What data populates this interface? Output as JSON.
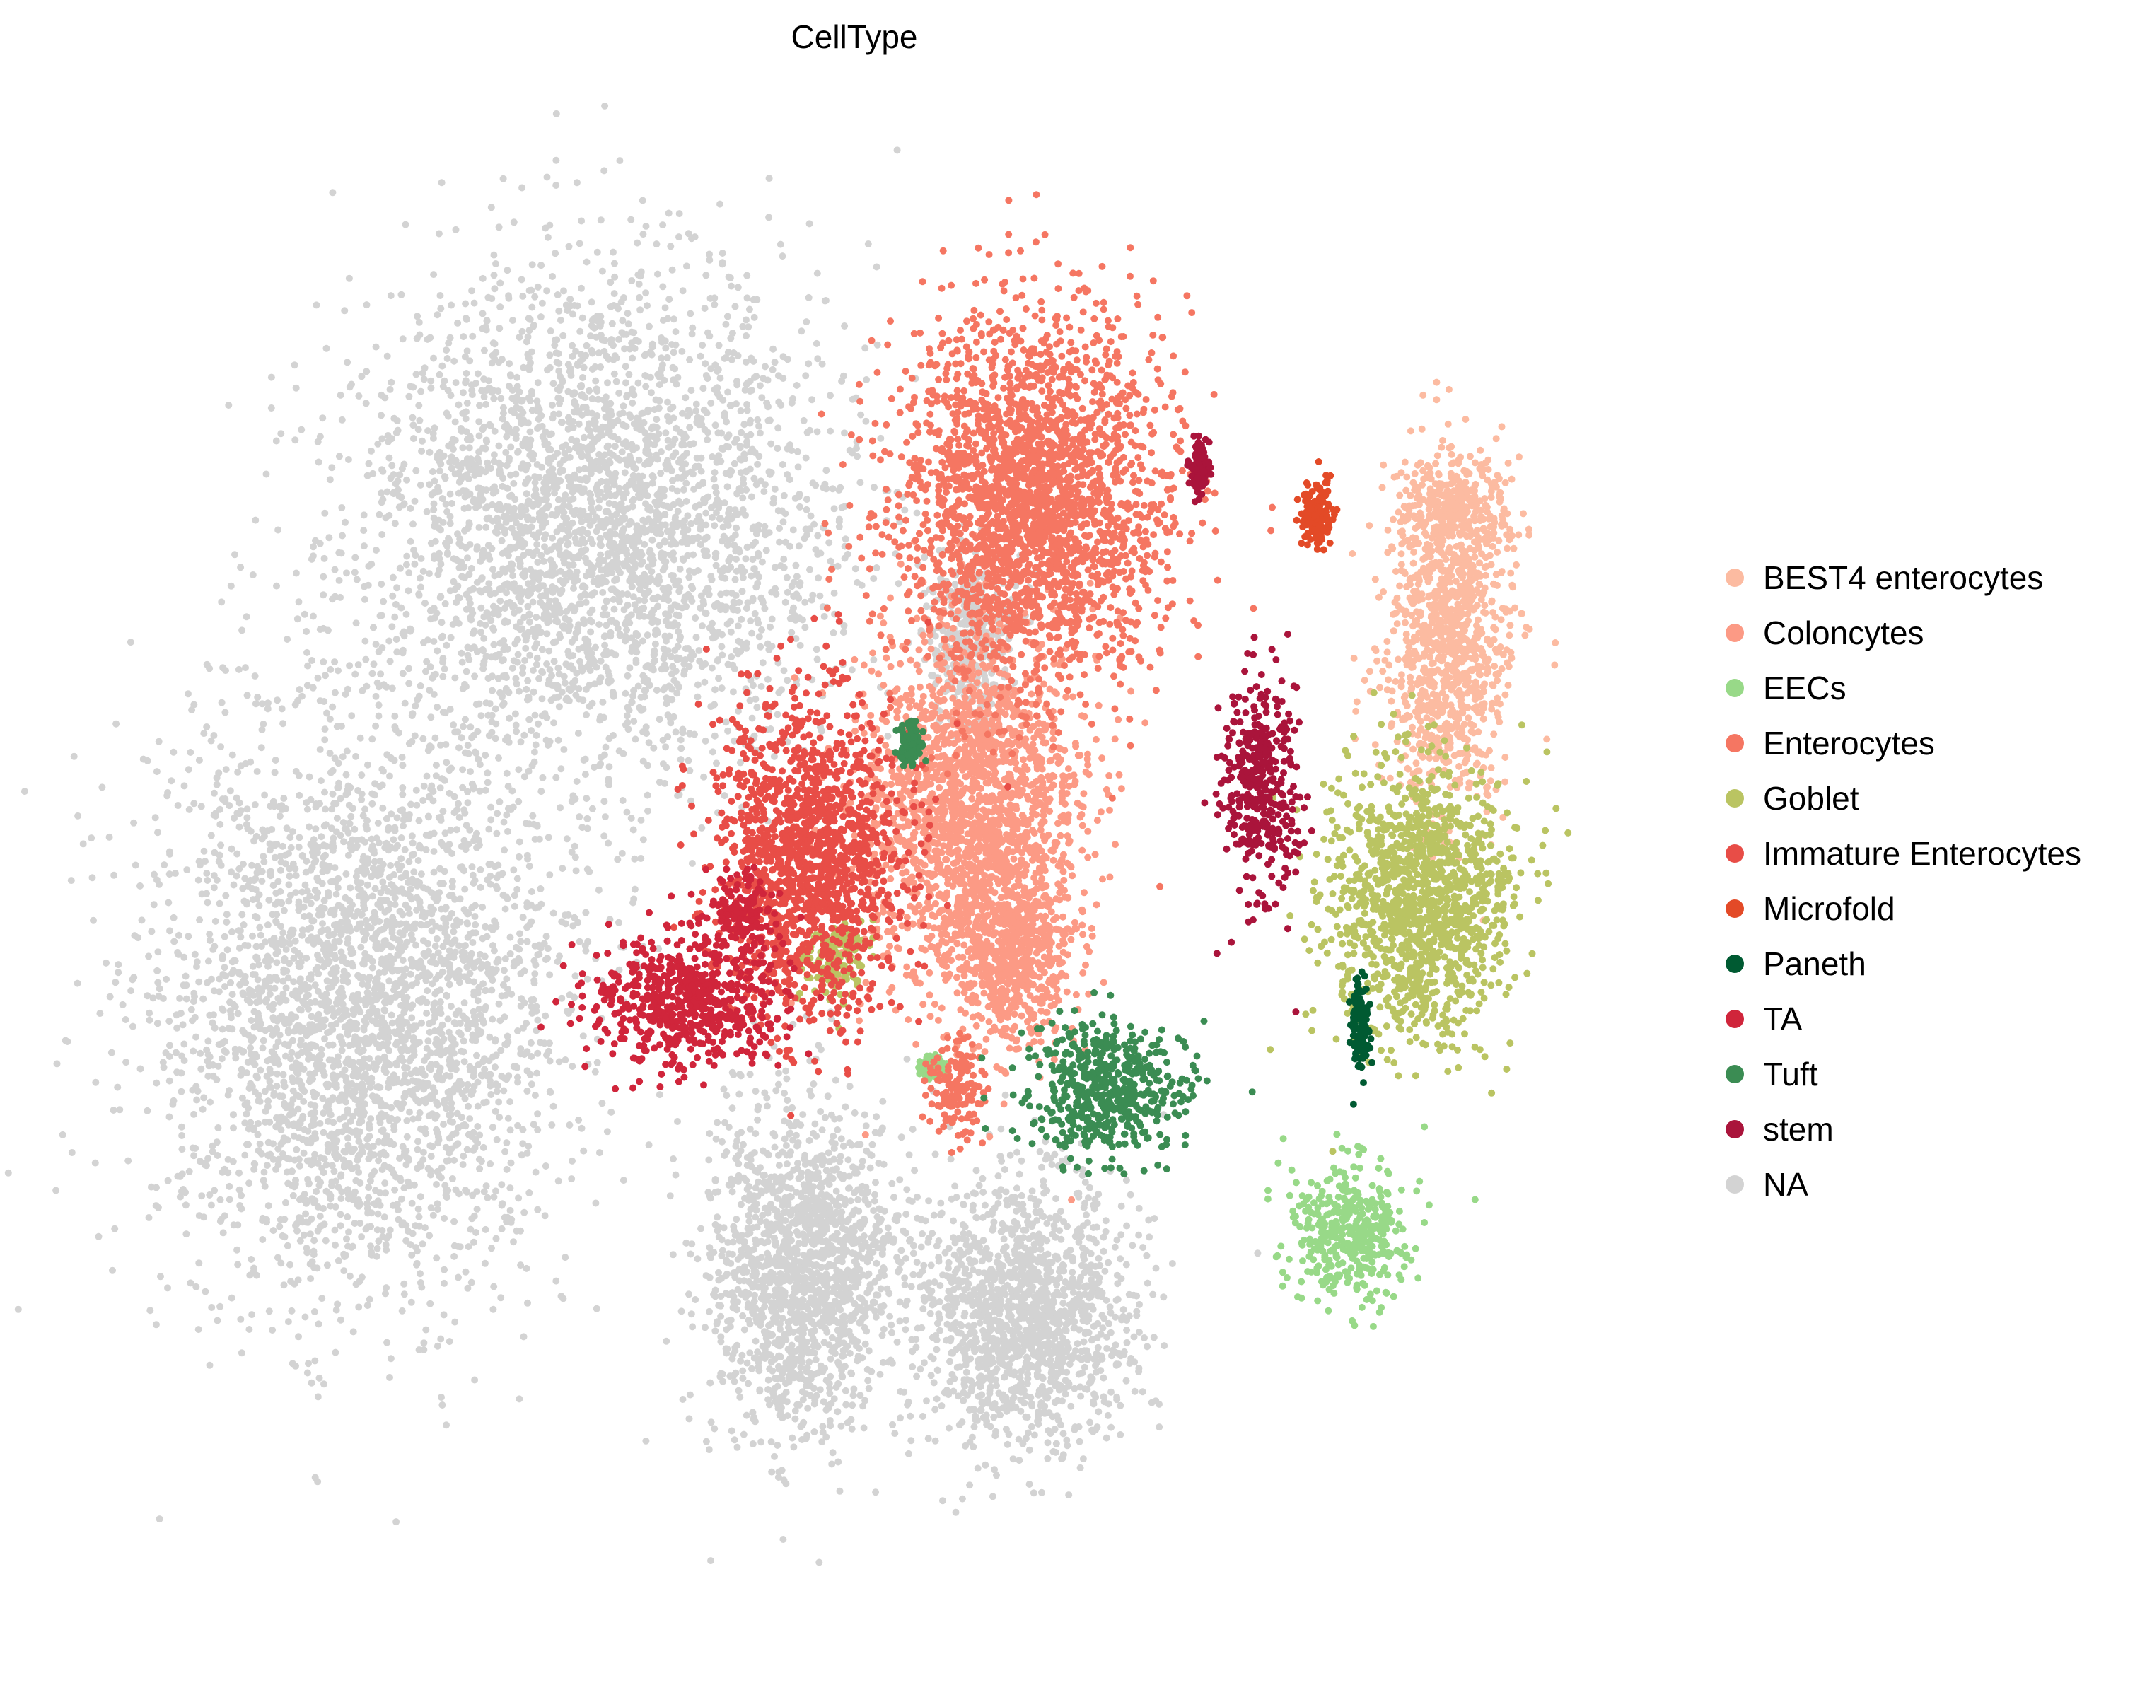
{
  "chart_data": {
    "type": "scatter",
    "title": "CellType",
    "xlabel": "",
    "ylabel": "",
    "axes_visible": false,
    "grid": false,
    "xlim": [
      0,
      100
    ],
    "ylim": [
      0,
      100
    ],
    "legend_position": "right",
    "series": [
      {
        "name": "BEST4 enterocytes",
        "color": "#fcbba1",
        "clusters": [
          [
            88.7,
            33.6,
            3.6,
            10.5
          ],
          [
            89.5,
            25.0,
            3.0,
            3.0
          ]
        ]
      },
      {
        "name": "Coloncytes",
        "color": "#fc9a85",
        "clusters": [
          [
            57.5,
            45.5,
            6.3,
            11.0
          ],
          [
            60.5,
            55.0,
            3.5,
            5.5
          ]
        ]
      },
      {
        "name": "EECs",
        "color": "#98d988",
        "clusters": [
          [
            82.3,
            73.5,
            3.5,
            4.2
          ],
          [
            55.0,
            62.5,
            0.7,
            0.6
          ]
        ]
      },
      {
        "name": "Enterocytes",
        "color": "#f57662",
        "clusters": [
          [
            61.5,
            24.5,
            8.0,
            11.0
          ],
          [
            56.5,
            64.0,
            1.6,
            3.0
          ]
        ]
      },
      {
        "name": "Goblet",
        "color": "#bac462",
        "clusters": [
          [
            87.0,
            51.5,
            5.3,
            8.5
          ],
          [
            48.5,
            55.0,
            2.0,
            2.5
          ]
        ]
      },
      {
        "name": "Immature Enterocytes",
        "color": "#e84d47",
        "clusters": [
          [
            47.0,
            48.5,
            5.5,
            9.5
          ]
        ]
      },
      {
        "name": "Microfold",
        "color": "#e34a27",
        "clusters": [
          [
            80.2,
            25.5,
            1.0,
            2.2
          ]
        ]
      },
      {
        "name": "Paneth",
        "color": "#005a32",
        "clusters": [
          [
            83.0,
            60.0,
            0.6,
            3.0
          ]
        ]
      },
      {
        "name": "TA",
        "color": "#d0253b",
        "clusters": [
          [
            39.0,
            58.0,
            5.8,
            3.8
          ],
          [
            42.5,
            52.0,
            2.0,
            2.5
          ]
        ]
      },
      {
        "name": "Tuft",
        "color": "#3b8c53",
        "clusters": [
          [
            66.5,
            64.0,
            4.8,
            4.0
          ],
          [
            53.5,
            41.0,
            0.6,
            1.5
          ]
        ]
      },
      {
        "name": "stem",
        "color": "#aa143b",
        "clusters": [
          [
            76.5,
            43.5,
            2.2,
            6.5
          ],
          [
            72.5,
            22.5,
            0.5,
            1.5
          ]
        ]
      },
      {
        "name": "NA",
        "color": "#d3d3d3",
        "clusters": [
          [
            17.5,
            58.5,
            12.0,
            17.5
          ],
          [
            33.0,
            26.0,
            14.0,
            15.0
          ],
          [
            57.5,
            33.5,
            2.5,
            5.5
          ],
          [
            46.5,
            76.0,
            5.5,
            10.0
          ],
          [
            61.0,
            79.0,
            6.5,
            8.0
          ]
        ]
      }
    ]
  }
}
